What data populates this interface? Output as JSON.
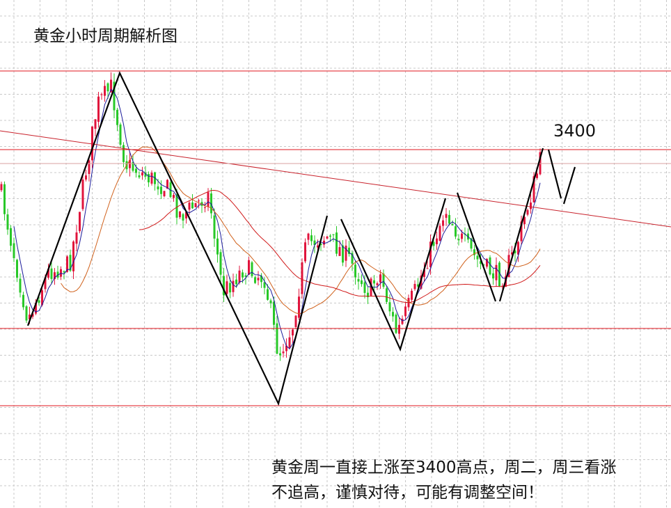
{
  "title": "黄金小时周期解析图",
  "level_label": "3400",
  "note": [
    "黄金周一直接上涨至3400高点，周二，周三看涨",
    "不追高，谨慎对待，可能有调整空间！"
  ]
}
